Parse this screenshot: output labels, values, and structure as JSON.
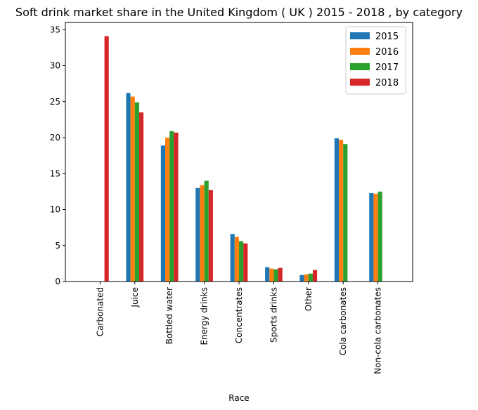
{
  "chart_data": {
    "type": "bar",
    "title": "Soft drink market share in the United Kingdom ( UK ) 2015 - 2018 , by category",
    "xlabel": "Race",
    "ylabel": "",
    "ylim": [
      0,
      36
    ],
    "yticks": [
      0,
      5,
      10,
      15,
      20,
      25,
      30,
      35
    ],
    "grid": false,
    "legend_position": "top-right",
    "categories": [
      "Carbonated",
      "Juice",
      "Bottled water",
      "Energy drinks",
      "Concentrates",
      "Sports drinks",
      "Other",
      "Cola carbonates",
      "Non-cola carbonates"
    ],
    "series": [
      {
        "name": "2015",
        "color": "#1f77b4",
        "values": [
          0,
          26.2,
          18.9,
          13.0,
          6.6,
          2.0,
          0.9,
          19.9,
          12.3
        ]
      },
      {
        "name": "2016",
        "color": "#ff7f0e",
        "values": [
          0,
          25.7,
          20.0,
          13.4,
          6.2,
          1.8,
          1.0,
          19.7,
          12.2
        ]
      },
      {
        "name": "2017",
        "color": "#2ca02c",
        "values": [
          0,
          24.9,
          20.9,
          14.0,
          5.6,
          1.7,
          1.1,
          19.1,
          12.5
        ]
      },
      {
        "name": "2018",
        "color": "#d62728",
        "values": [
          34.1,
          23.5,
          20.7,
          12.7,
          5.3,
          1.9,
          1.6,
          0,
          0
        ]
      }
    ]
  }
}
